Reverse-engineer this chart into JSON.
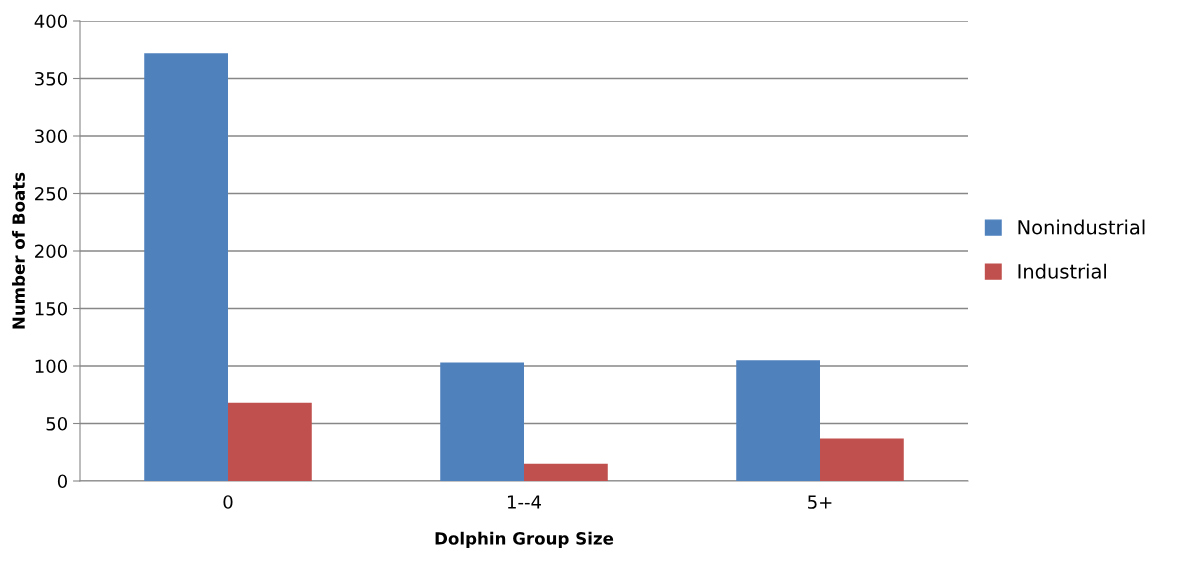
{
  "chart_data": {
    "type": "bar",
    "xlabel": "Dolphin Group Size",
    "ylabel": "Number of Boats",
    "categories": [
      "0",
      "1--4",
      "5+"
    ],
    "series": [
      {
        "name": "Nonindustrial",
        "color": "#4f81bd",
        "values": [
          372,
          103,
          105
        ]
      },
      {
        "name": "Industrial",
        "color": "#c0504d",
        "values": [
          68,
          15,
          37
        ]
      }
    ],
    "ylim": [
      0,
      400
    ],
    "yticks": [
      0,
      50,
      100,
      150,
      200,
      250,
      300,
      350,
      400
    ],
    "grid": "y",
    "legend": "right"
  }
}
